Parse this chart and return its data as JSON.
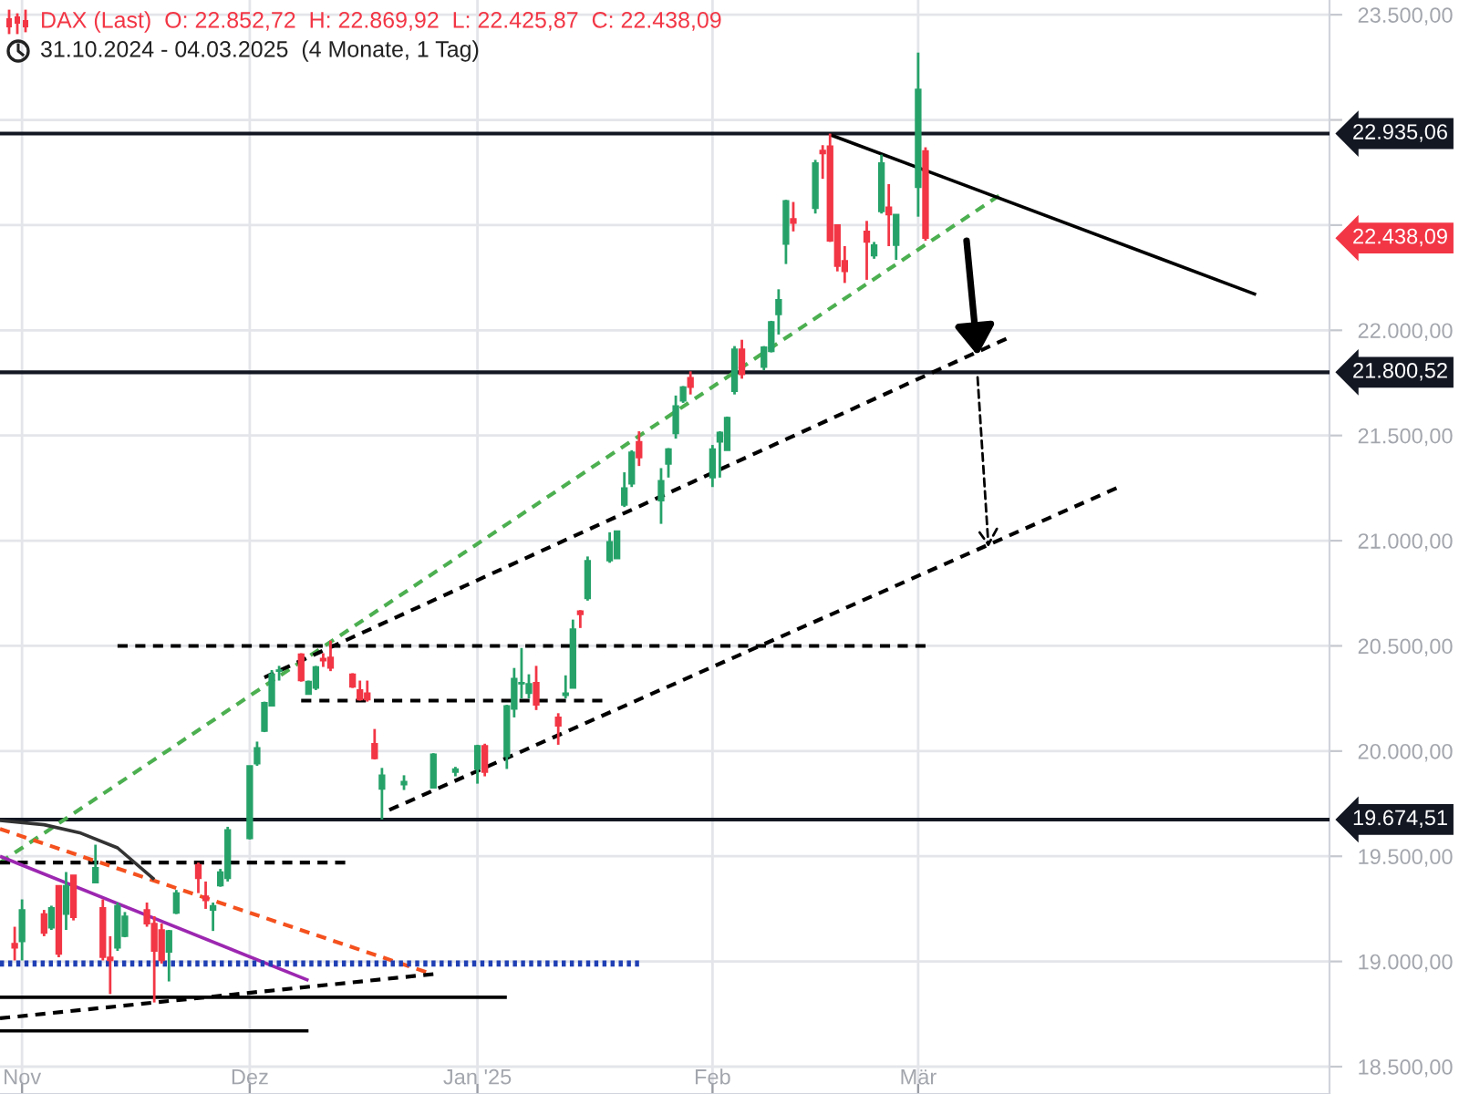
{
  "chart_data": {
    "type": "candlestick",
    "title": "DAX (Last)  O: 22.852,72  H: 22.869,92  L: 22.425,87  C: 22.438,09",
    "subtitle": "31.10.2024 - 04.03.2025  (4 Monate, 1 Tag)",
    "x": [
      "2024-10-31",
      "2024-11-01",
      "2024-11-04",
      "2024-11-05",
      "2024-11-06",
      "2024-11-07",
      "2024-11-08",
      "2024-11-11",
      "2024-11-12",
      "2024-11-13",
      "2024-11-14",
      "2024-11-15",
      "2024-11-18",
      "2024-11-19",
      "2024-11-20",
      "2024-11-21",
      "2024-11-22",
      "2024-11-25",
      "2024-11-26",
      "2024-11-27",
      "2024-11-28",
      "2024-11-29",
      "2024-12-02",
      "2024-12-03",
      "2024-12-04",
      "2024-12-05",
      "2024-12-06",
      "2024-12-09",
      "2024-12-10",
      "2024-12-11",
      "2024-12-12",
      "2024-12-13",
      "2024-12-16",
      "2024-12-17",
      "2024-12-18",
      "2024-12-19",
      "2024-12-20",
      "2024-12-23",
      "2024-12-27",
      "2024-12-30",
      "2025-01-02",
      "2025-01-03",
      "2025-01-06",
      "2025-01-07",
      "2025-01-08",
      "2025-01-09",
      "2025-01-10",
      "2025-01-13",
      "2025-01-14",
      "2025-01-15",
      "2025-01-16",
      "2025-01-17",
      "2025-01-20",
      "2025-01-21",
      "2025-01-22",
      "2025-01-23",
      "2025-01-24",
      "2025-01-27",
      "2025-01-28",
      "2025-01-29",
      "2025-01-30",
      "2025-01-31",
      "2025-02-03",
      "2025-02-04",
      "2025-02-05",
      "2025-02-06",
      "2025-02-07",
      "2025-02-10",
      "2025-02-11",
      "2025-02-12",
      "2025-02-13",
      "2025-02-14",
      "2025-02-17",
      "2025-02-18",
      "2025-02-19",
      "2025-02-20",
      "2025-02-21",
      "2025-02-24",
      "2025-02-25",
      "2025-02-26",
      "2025-02-27",
      "2025-02-28",
      "2025-03-03",
      "2025-03-04"
    ],
    "ohlc": [
      [
        19085,
        19165,
        19005,
        19065
      ],
      [
        19095,
        19295,
        19005,
        19245
      ],
      [
        19225,
        19245,
        19120,
        19135
      ],
      [
        19160,
        19265,
        19150,
        19255
      ],
      [
        19360,
        19360,
        19020,
        19035
      ],
      [
        19225,
        19425,
        19150,
        19360
      ],
      [
        19410,
        19410,
        19195,
        19210
      ],
      [
        19375,
        19555,
        19375,
        19445
      ],
      [
        19255,
        19295,
        19005,
        19020
      ],
      [
        19020,
        19120,
        18845,
        19005
      ],
      [
        19065,
        19280,
        19050,
        19265
      ],
      [
        19120,
        19235,
        19115,
        19215
      ],
      [
        19245,
        19280,
        19165,
        19180
      ],
      [
        19180,
        19215,
        18805,
        19050
      ],
      [
        19150,
        19180,
        18990,
        19005
      ],
      [
        19045,
        19150,
        18905,
        19145
      ],
      [
        19230,
        19340,
        19225,
        19325
      ],
      [
        19460,
        19470,
        19325,
        19395
      ],
      [
        19310,
        19380,
        19250,
        19290
      ],
      [
        19245,
        19280,
        19145,
        19265
      ],
      [
        19360,
        19440,
        19355,
        19425
      ],
      [
        19395,
        19640,
        19380,
        19625
      ],
      [
        19585,
        19930,
        19580,
        19930
      ],
      [
        19940,
        20045,
        19930,
        20015
      ],
      [
        20095,
        20235,
        20090,
        20230
      ],
      [
        20215,
        20385,
        20215,
        20365
      ],
      [
        20380,
        20405,
        20335,
        20385
      ],
      [
        20460,
        20465,
        20330,
        20335
      ],
      [
        20270,
        20335,
        20270,
        20330
      ],
      [
        20300,
        20405,
        20290,
        20400
      ],
      [
        20440,
        20465,
        20400,
        20430
      ],
      [
        20445,
        20525,
        20380,
        20395
      ],
      [
        20365,
        20370,
        20300,
        20305
      ],
      [
        20290,
        20335,
        20240,
        20245
      ],
      [
        20275,
        20335,
        20235,
        20245
      ],
      [
        20035,
        20105,
        19960,
        19965
      ],
      [
        19820,
        19920,
        19675,
        19885
      ],
      [
        19840,
        19885,
        19815,
        19855
      ],
      [
        19825,
        19990,
        19825,
        19985
      ],
      [
        19900,
        19925,
        19880,
        19915
      ],
      [
        19915,
        20030,
        19845,
        20025
      ],
      [
        20025,
        20035,
        19880,
        19900
      ],
      [
        19975,
        20220,
        19915,
        20215
      ],
      [
        20200,
        20395,
        20160,
        20345
      ],
      [
        20320,
        20490,
        20250,
        20325
      ],
      [
        20275,
        20365,
        20250,
        20320
      ],
      [
        20325,
        20405,
        20195,
        20220
      ],
      [
        20160,
        20180,
        20030,
        20120
      ],
      [
        20265,
        20360,
        20250,
        20275
      ],
      [
        20300,
        20625,
        20300,
        20580
      ],
      [
        20665,
        20670,
        20585,
        20650
      ],
      [
        20725,
        20925,
        20715,
        20905
      ],
      [
        20905,
        21040,
        20895,
        20995
      ],
      [
        20915,
        21045,
        20915,
        21045
      ],
      [
        21170,
        21325,
        21160,
        21250
      ],
      [
        21270,
        21430,
        21255,
        21420
      ],
      [
        21470,
        21520,
        21355,
        21395
      ],
      [
        21190,
        21345,
        21080,
        21285
      ],
      [
        21365,
        21440,
        21300,
        21435
      ],
      [
        21510,
        21690,
        21485,
        21640
      ],
      [
        21665,
        21735,
        21655,
        21730
      ],
      [
        21775,
        21805,
        21695,
        21730
      ],
      [
        21300,
        21455,
        21255,
        21435
      ],
      [
        21470,
        21520,
        21300,
        21515
      ],
      [
        21430,
        21590,
        21430,
        21585
      ],
      [
        21710,
        21925,
        21695,
        21910
      ],
      [
        21910,
        21955,
        21770,
        21790
      ],
      [
        21825,
        21925,
        21810,
        21920
      ],
      [
        21900,
        22045,
        21895,
        22040
      ],
      [
        22075,
        22195,
        21980,
        22145
      ],
      [
        22410,
        22620,
        22315,
        22615
      ],
      [
        22530,
        22610,
        22470,
        22510
      ],
      [
        22580,
        22810,
        22555,
        22795
      ],
      [
        22855,
        22880,
        22720,
        22840
      ],
      [
        22875,
        22935,
        22420,
        22425
      ],
      [
        22500,
        22500,
        22280,
        22305
      ],
      [
        22330,
        22400,
        22225,
        22280
      ],
      [
        22470,
        22520,
        22240,
        22420
      ],
      [
        22355,
        22420,
        22340,
        22405
      ],
      [
        22565,
        22835,
        22555,
        22795
      ],
      [
        22585,
        22695,
        22400,
        22550
      ],
      [
        22405,
        22550,
        22335,
        22550
      ],
      [
        22680,
        23320,
        22540,
        23145
      ],
      [
        22852.72,
        22869.92,
        22425.87,
        22438.09
      ]
    ],
    "colors": [
      "#f23645",
      "#26a269",
      "#f23645",
      "#26a269",
      "#f23645",
      "#26a269",
      "#f23645",
      "#26a269",
      "#f23645",
      "#f23645",
      "#26a269",
      "#26a269",
      "#f23645",
      "#f23645",
      "#f23645",
      "#26a269",
      "#26a269",
      "#f23645",
      "#f23645",
      "#26a269",
      "#26a269",
      "#26a269",
      "#26a269",
      "#26a269",
      "#26a269",
      "#26a269",
      "#26a269",
      "#f23645",
      "#26a269",
      "#26a269",
      "#f23645",
      "#f23645",
      "#f23645",
      "#f23645",
      "#f23645",
      "#f23645",
      "#26a269",
      "#26a269",
      "#26a269",
      "#26a269",
      "#26a269",
      "#f23645",
      "#26a269",
      "#26a269",
      "#26a269",
      "#26a269",
      "#f23645",
      "#f23645",
      "#26a269",
      "#26a269",
      "#f23645",
      "#26a269",
      "#26a269",
      "#26a269",
      "#26a269",
      "#26a269",
      "#f23645",
      "#26a269",
      "#26a269",
      "#26a269",
      "#26a269",
      "#f23645",
      "#26a269",
      "#26a269",
      "#26a269",
      "#26a269",
      "#f23645",
      "#26a269",
      "#26a269",
      "#26a269",
      "#26a269",
      "#f23645",
      "#26a269",
      "#f23645",
      "#f23645",
      "#f23645",
      "#f23645",
      "#f23645",
      "#26a269",
      "#26a269",
      "#f23645",
      "#26a269",
      "#26a269",
      "#f23645"
    ],
    "series": [
      {
        "type": "line",
        "color": "#4caf50",
        "line_style": "dashed",
        "x": [
          "2024-10-29",
          "2025-03-14"
        ],
        "values": [
          19470,
          22640
        ]
      },
      {
        "type": "line",
        "color": "#000000",
        "line_style": "dashed",
        "x": [
          "2024-12-04",
          "2025-03-15"
        ],
        "values": [
          20350,
          21960
        ]
      },
      {
        "type": "line",
        "color": "#000000",
        "line_style": "dashed",
        "x": [
          "2024-12-21",
          "2025-03-30"
        ],
        "values": [
          19720,
          21250
        ]
      },
      {
        "type": "line",
        "color": "#000000",
        "line_style": "solid",
        "x": [
          "2025-02-19",
          "2025-04-18"
        ],
        "values": [
          22930,
          22170
        ]
      },
      {
        "type": "line",
        "color": "#000000",
        "line_style": "dashed",
        "x": [
          "2024-11-14",
          "2025-03-04"
        ],
        "values": [
          20500,
          20500
        ]
      },
      {
        "type": "line",
        "color": "#000000",
        "line_style": "dashed",
        "x": [
          "2024-12-09",
          "2025-01-19"
        ],
        "values": [
          20240,
          20240
        ]
      },
      {
        "type": "line",
        "color": "#000000",
        "line_style": "dashed",
        "x": [
          "2024-10-29",
          "2024-12-15"
        ],
        "values": [
          19470,
          19470
        ]
      },
      {
        "type": "line",
        "color": "#f4511e",
        "line_style": "dashed",
        "x": [
          "2024-10-29",
          "2024-12-26"
        ],
        "values": [
          19630,
          18950
        ]
      },
      {
        "type": "line",
        "color": "#9c27b0",
        "line_style": "solid",
        "x": [
          "2024-10-29",
          "2024-12-10"
        ],
        "values": [
          19500,
          18910
        ]
      },
      {
        "type": "line",
        "color": "#000000",
        "line_style": "dashed",
        "x": [
          "2024-10-29",
          "2024-12-27"
        ],
        "values": [
          18730,
          18940
        ]
      },
      {
        "type": "line",
        "color": "#1f3fb4",
        "line_style": "dotted",
        "x": [
          "2024-10-29",
          "2025-01-24"
        ],
        "values": [
          18990,
          18990
        ]
      },
      {
        "type": "line",
        "color": "#000000",
        "line_style": "solid",
        "x": [
          "2024-10-29",
          "2025-01-06"
        ],
        "values": [
          18830,
          18830
        ]
      },
      {
        "type": "line",
        "color": "#000000",
        "line_style": "solid",
        "x": [
          "2024-10-29",
          "2024-12-10"
        ],
        "values": [
          18670,
          18670
        ]
      },
      {
        "type": "line",
        "color": "#333333",
        "line_style": "solid",
        "x": [
          "2024-10-29",
          "2024-11-04",
          "2024-11-09",
          "2024-11-14",
          "2024-11-19"
        ],
        "values": [
          19670,
          19650,
          19610,
          19540,
          19390
        ]
      }
    ],
    "ref_lines": [
      {
        "axis": "y",
        "value": 22935.06,
        "label": "22.935,06",
        "color": "#131722",
        "line_style": "solid"
      },
      {
        "axis": "y",
        "value": 21800.52,
        "label": "21.800,52",
        "color": "#131722",
        "line_style": "solid"
      },
      {
        "axis": "y",
        "value": 19674.51,
        "label": "19.674,51",
        "color": "#131722",
        "line_style": "solid"
      }
    ],
    "annotations": [
      "22.438,09"
    ],
    "xlim": [
      "2024-10-29",
      "2025-04-28"
    ],
    "xticks": [
      {
        "value": "2024-11-01",
        "label": "Nov"
      },
      {
        "value": "2024-12-02",
        "label": "Dez"
      },
      {
        "value": "2025-01-02",
        "label": "Jan '25"
      },
      {
        "value": "2025-02-03",
        "label": "Feb"
      },
      {
        "value": "2025-03-03",
        "label": "Mär"
      }
    ],
    "ylim": [
      18370,
      23570
    ],
    "yticks": [
      {
        "value": 18500,
        "label": "18.500,00"
      },
      {
        "value": 19000,
        "label": "19.000,00"
      },
      {
        "value": 19500,
        "label": "19.500,00"
      },
      {
        "value": 20000,
        "label": "20.000,00"
      },
      {
        "value": 20500,
        "label": "20.500,00"
      },
      {
        "value": 21000,
        "label": "21.000,00"
      },
      {
        "value": 21500,
        "label": "21.500,00"
      },
      {
        "value": 22000,
        "label": "22.000,00"
      },
      {
        "value": 22500,
        "label": null
      },
      {
        "value": 23000,
        "label": null
      },
      {
        "value": 23500,
        "label": "23.500,00"
      }
    ],
    "grid": true
  }
}
